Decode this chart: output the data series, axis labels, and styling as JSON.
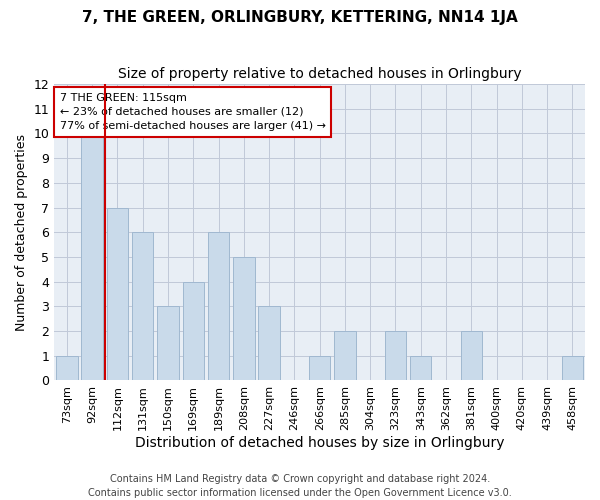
{
  "title": "7, THE GREEN, ORLINGBURY, KETTERING, NN14 1JA",
  "subtitle": "Size of property relative to detached houses in Orlingbury",
  "xlabel": "Distribution of detached houses by size in Orlingbury",
  "ylabel": "Number of detached properties",
  "categories": [
    "73sqm",
    "92sqm",
    "112sqm",
    "131sqm",
    "150sqm",
    "169sqm",
    "189sqm",
    "208sqm",
    "227sqm",
    "246sqm",
    "266sqm",
    "285sqm",
    "304sqm",
    "323sqm",
    "343sqm",
    "362sqm",
    "381sqm",
    "400sqm",
    "420sqm",
    "439sqm",
    "458sqm"
  ],
  "values": [
    1,
    10,
    7,
    6,
    3,
    4,
    6,
    5,
    3,
    0,
    1,
    2,
    0,
    2,
    1,
    0,
    2,
    0,
    0,
    0,
    1
  ],
  "bar_color": "#c9daea",
  "bar_edge_color": "#a0b8d0",
  "grid_color": "#c0c8d8",
  "bg_color": "#e8eef5",
  "vline_x": 1.5,
  "vline_color": "#cc0000",
  "annotation_text": "7 THE GREEN: 115sqm\n← 23% of detached houses are smaller (12)\n77% of semi-detached houses are larger (41) →",
  "annotation_box_color": "#ffffff",
  "annotation_box_edge": "#cc0000",
  "ylim": [
    0,
    12
  ],
  "yticks": [
    0,
    1,
    2,
    3,
    4,
    5,
    6,
    7,
    8,
    9,
    10,
    11,
    12
  ],
  "footer": "Contains HM Land Registry data © Crown copyright and database right 2024.\nContains public sector information licensed under the Open Government Licence v3.0.",
  "title_fontsize": 11,
  "subtitle_fontsize": 10,
  "ylabel_fontsize": 9,
  "xlabel_fontsize": 10,
  "tick_fontsize": 8,
  "annotation_fontsize": 8,
  "footer_fontsize": 7
}
